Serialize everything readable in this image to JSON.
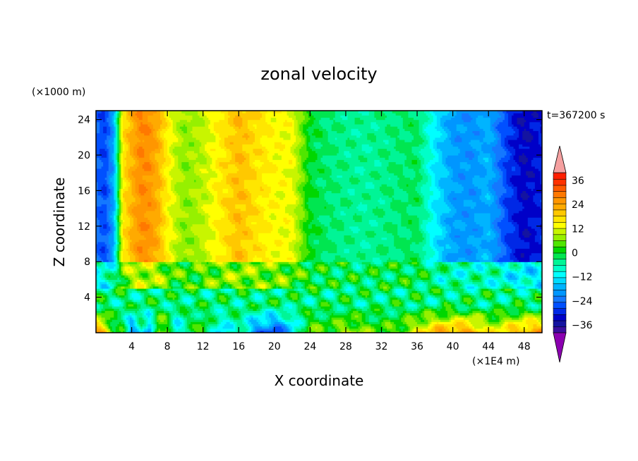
{
  "chart_data": {
    "type": "heatmap",
    "title": "zonal velocity",
    "xlabel": "X coordinate",
    "ylabel": "Z coordinate",
    "x_unit": "(×1E4 m)",
    "y_unit": "(×1000 m)",
    "time_label": "t=367200 s",
    "xlim": [
      0,
      50
    ],
    "ylim": [
      0,
      25
    ],
    "x_ticks": [
      4,
      8,
      12,
      16,
      20,
      24,
      28,
      32,
      36,
      40,
      44,
      48
    ],
    "y_ticks": [
      4,
      8,
      12,
      16,
      20,
      24
    ],
    "colorbar": {
      "levels": [
        -42,
        -39,
        -36,
        -33,
        -30,
        -27,
        -24,
        -21,
        -18,
        -15,
        -12,
        -9,
        -6,
        -3,
        0,
        3,
        6,
        9,
        12,
        15,
        18,
        21,
        24,
        27,
        30,
        33,
        36,
        39,
        42
      ],
      "tick_labels": [
        "36",
        "24",
        "12",
        "0",
        "−12",
        "−24",
        "−36"
      ],
      "colors": [
        "#8b00b0",
        "#3a0ea0",
        "#1414a0",
        "#0000c8",
        "#0028e6",
        "#0050ff",
        "#1478ff",
        "#0096ff",
        "#00b4ff",
        "#00dcff",
        "#00ffff",
        "#00ffc8",
        "#00f596",
        "#00e650",
        "#00d700",
        "#50e600",
        "#96f000",
        "#c8f500",
        "#ffff00",
        "#ffe600",
        "#ffc800",
        "#ffaa00",
        "#ff9600",
        "#ff7800",
        "#ff5a00",
        "#ff3200",
        "#ff1e00",
        "#f5a0a0"
      ]
    },
    "profile": {
      "x": [
        0,
        1,
        2,
        3,
        4,
        5,
        6,
        7,
        8,
        9,
        10,
        12,
        14,
        16,
        18,
        20,
        22,
        24,
        26,
        28,
        30,
        32,
        34,
        36,
        38,
        40,
        42,
        44,
        46,
        48,
        50
      ],
      "upper_u": [
        -24,
        -27,
        -18,
        16,
        22,
        27,
        26,
        22,
        15,
        10,
        7,
        10,
        16,
        21,
        17,
        14,
        13,
        0,
        -3,
        -4,
        -5,
        -4,
        -3,
        -2,
        -12,
        -19,
        -20,
        -17,
        -27,
        -33,
        -30
      ],
      "surface_u": [
        28,
        20,
        0,
        0,
        -22,
        -6,
        -22,
        12,
        4,
        -15,
        -5,
        5,
        -15,
        -5,
        -22,
        -28,
        -15,
        6,
        3,
        10,
        6,
        3,
        5,
        14,
        22,
        24,
        26,
        12,
        18,
        24,
        26
      ]
    }
  }
}
